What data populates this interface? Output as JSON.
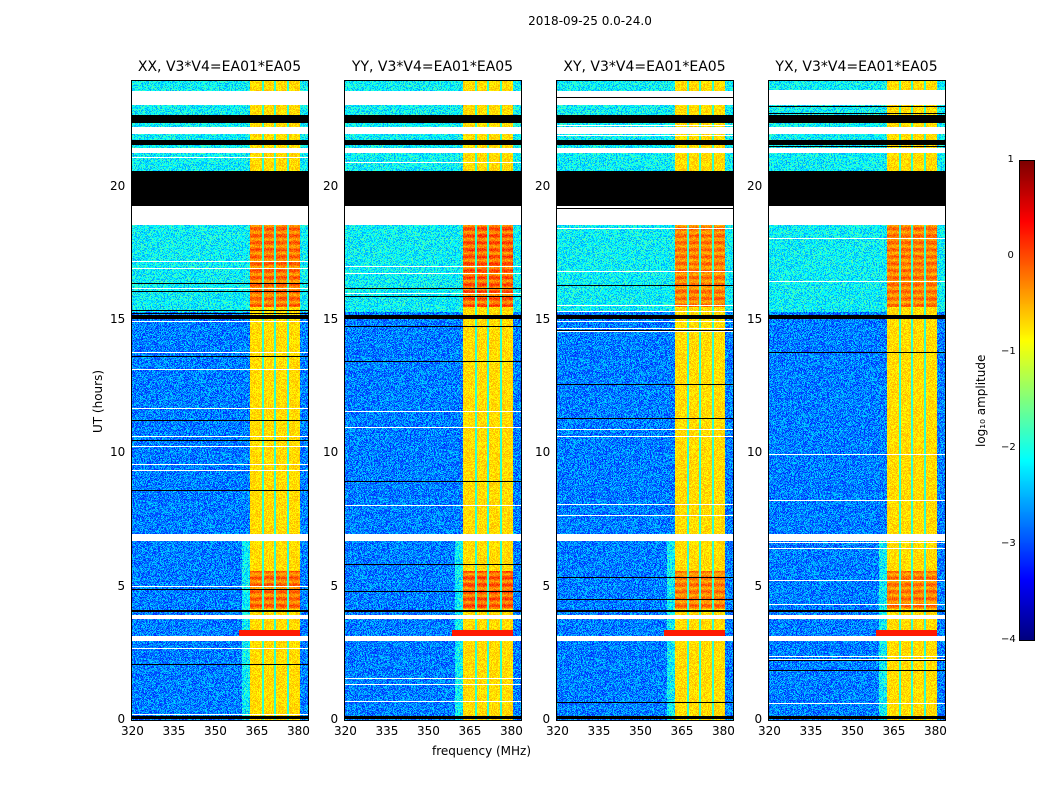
{
  "chart_data": {
    "type": "heatmap",
    "title": "2018-09-25 0.0-24.0",
    "xlabel": "frequency (MHz)",
    "ylabel": "UT (hours)",
    "xlim": [
      320,
      384
    ],
    "ylim": [
      0,
      24
    ],
    "x_ticks": [
      "320",
      "335",
      "350",
      "365",
      "380"
    ],
    "x_tick_values": [
      320,
      335,
      350,
      365,
      380
    ],
    "y_ticks": [
      "0",
      "5",
      "10",
      "15",
      "20"
    ],
    "y_tick_values": [
      0,
      5,
      10,
      15,
      20
    ],
    "panels": [
      {
        "title": "XX, V3*V4=EA01*EA05",
        "pol": "XX",
        "rfi_strength": 1.0,
        "show_xlabel": false,
        "show_ylabel": true
      },
      {
        "title": "YY, V3*V4=EA01*EA05",
        "pol": "YY",
        "rfi_strength": 1.15,
        "show_xlabel": true,
        "show_ylabel": false
      },
      {
        "title": "XY, V3*V4=EA01*EA05",
        "pol": "XY",
        "rfi_strength": 0.9,
        "show_xlabel": false,
        "show_ylabel": false
      },
      {
        "title": "YX, V3*V4=EA01*EA05",
        "pol": "YX",
        "rfi_strength": 0.9,
        "show_xlabel": false,
        "show_ylabel": false
      }
    ],
    "rfi_band_mhz": [
      363,
      381
    ],
    "rfi_channel_dividers_mhz": [
      367.5,
      372,
      376.5
    ],
    "flagged_black_hours": [
      [
        19.3,
        20.6
      ],
      [
        22.4,
        22.7
      ],
      [
        21.6,
        21.75
      ],
      [
        15.05,
        15.2
      ],
      [
        4.05,
        4.15
      ],
      [
        0.05,
        0.15
      ]
    ],
    "flagged_white_hours": [
      [
        18.6,
        19.3
      ],
      [
        23.1,
        23.6
      ],
      [
        22.0,
        22.25
      ],
      [
        21.3,
        21.45
      ],
      [
        6.75,
        7.0
      ],
      [
        3.0,
        3.15
      ],
      [
        3.8,
        3.95
      ]
    ],
    "colorbar": {
      "label": "log₁₀ amplitude",
      "range": [
        -4,
        1
      ],
      "ticks": [
        "1",
        "0",
        "−1",
        "−2",
        "−3",
        "−4"
      ],
      "tick_values": [
        1,
        0,
        -1,
        -2,
        -3,
        -4
      ],
      "colormap": "jet"
    }
  }
}
